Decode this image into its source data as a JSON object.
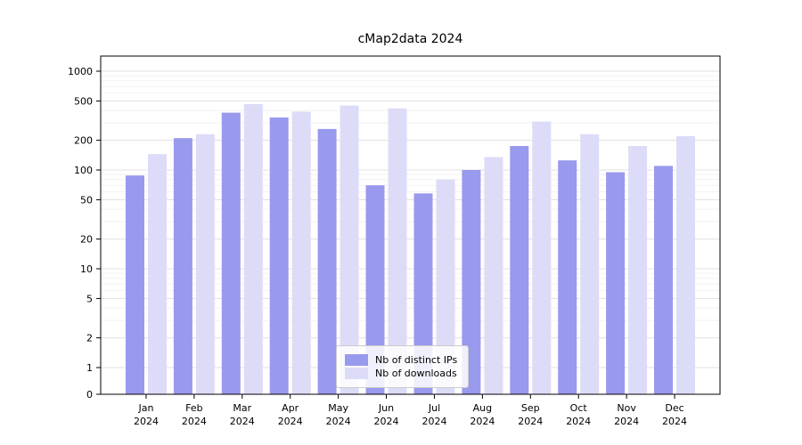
{
  "title": "cMap2data 2024",
  "chart_data": {
    "type": "bar",
    "scale": "log",
    "title": "cMap2data 2024",
    "categories": [
      "Jan",
      "Feb",
      "Mar",
      "Apr",
      "May",
      "Jun",
      "Jul",
      "Aug",
      "Sep",
      "Oct",
      "Nov",
      "Dec"
    ],
    "year_label": "2024",
    "series": [
      {
        "name": "Nb of distinct IPs",
        "color": "#9999ee",
        "values": [
          88,
          210,
          380,
          340,
          260,
          70,
          58,
          100,
          175,
          125,
          95,
          110
        ]
      },
      {
        "name": "Nb of downloads",
        "color": "#dcdcf8",
        "values": [
          145,
          230,
          465,
          390,
          450,
          420,
          80,
          135,
          310,
          230,
          175,
          220
        ]
      }
    ],
    "yticks": [
      0,
      1,
      2,
      5,
      10,
      20,
      50,
      100,
      200,
      500,
      1000
    ],
    "ylim": [
      0,
      1400
    ],
    "grid": true,
    "legend_position": "lower center",
    "colors": {
      "major_grid": "#e0e0e0",
      "minor_grid": "#f2f2f2",
      "axis": "#000000"
    }
  }
}
